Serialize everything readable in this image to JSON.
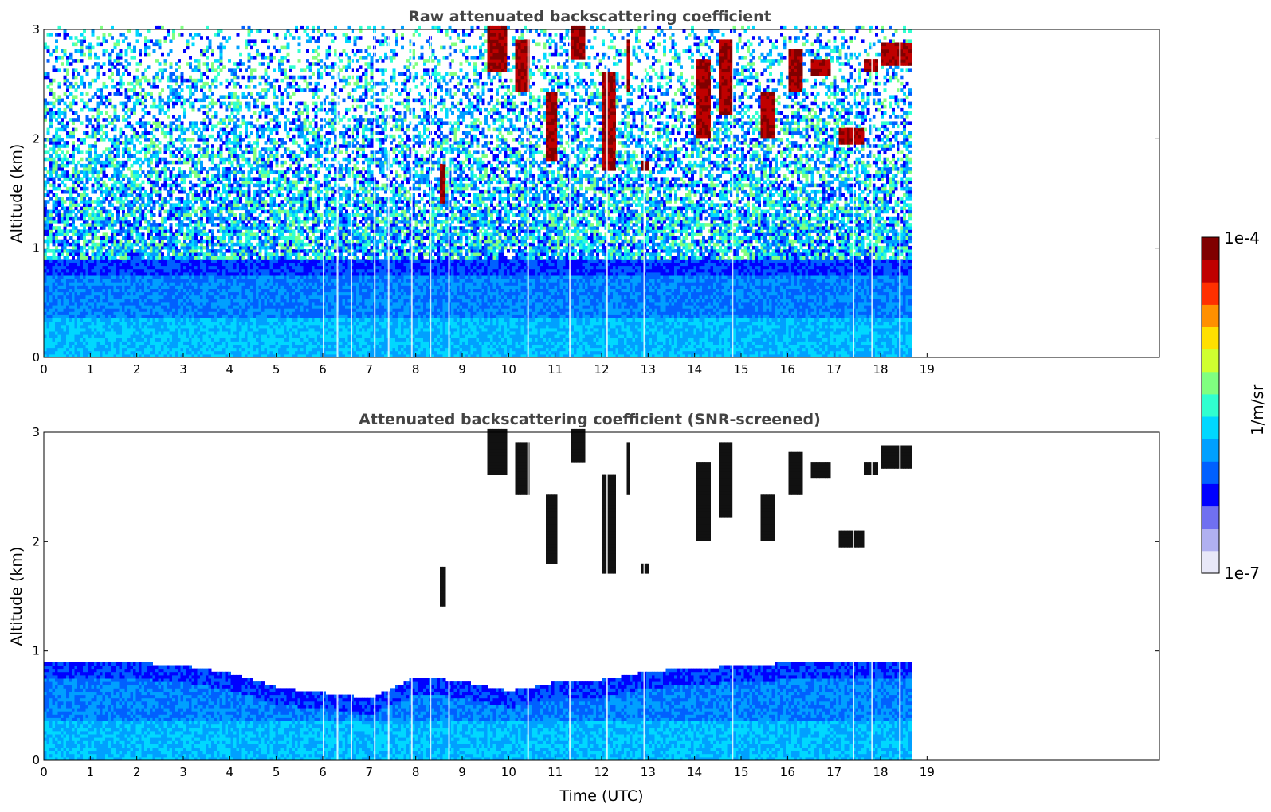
{
  "chart_data": [
    {
      "type": "heatmap",
      "title": "Raw attenuated backscattering coefficient",
      "xlabel": "",
      "ylabel": "Altitude (km)",
      "xlim": [
        0,
        24
      ],
      "ylim": [
        0,
        3
      ],
      "x_ticks": [
        0,
        1,
        2,
        3,
        4,
        5,
        6,
        7,
        8,
        9,
        10,
        11,
        12,
        13,
        14,
        15,
        16,
        17,
        18,
        19
      ],
      "y_ticks": [
        0,
        1,
        2,
        3
      ],
      "data_end_time": 18.6,
      "description_of_field": "aerosol boundary layer up to ~0.9 km; noisy signal aloft; clouds between 1.4 and 3 km after 8.5 UTC",
      "cloud_patches": [
        {
          "t0": 9.5,
          "t1": 9.9,
          "z0": 2.6,
          "z1": 3.0
        },
        {
          "t0": 10.1,
          "t1": 10.4,
          "z0": 2.4,
          "z1": 2.9
        },
        {
          "t0": 10.8,
          "t1": 11.0,
          "z0": 1.8,
          "z1": 2.4
        },
        {
          "t0": 11.3,
          "t1": 11.6,
          "z0": 2.7,
          "z1": 3.0
        },
        {
          "t0": 12.0,
          "t1": 12.3,
          "z0": 1.7,
          "z1": 2.6
        },
        {
          "t0": 12.5,
          "t1": 12.6,
          "z0": 2.4,
          "z1": 2.9
        },
        {
          "t0": 12.8,
          "t1": 13.0,
          "z0": 1.7,
          "z1": 1.8
        },
        {
          "t0": 14.0,
          "t1": 14.3,
          "z0": 2.0,
          "z1": 2.7
        },
        {
          "t0": 14.5,
          "t1": 14.8,
          "z0": 2.2,
          "z1": 2.9
        },
        {
          "t0": 15.4,
          "t1": 15.7,
          "z0": 2.0,
          "z1": 2.4
        },
        {
          "t0": 16.0,
          "t1": 16.3,
          "z0": 2.4,
          "z1": 2.8
        },
        {
          "t0": 16.5,
          "t1": 16.9,
          "z0": 2.55,
          "z1": 2.7
        },
        {
          "t0": 17.1,
          "t1": 17.6,
          "z0": 1.95,
          "z1": 2.1
        },
        {
          "t0": 17.6,
          "t1": 17.9,
          "z0": 2.6,
          "z1": 2.7
        },
        {
          "t0": 18.0,
          "t1": 18.6,
          "z0": 2.65,
          "z1": 2.85
        },
        {
          "t0": 8.5,
          "t1": 8.6,
          "z0": 1.4,
          "z1": 1.75
        }
      ]
    },
    {
      "type": "heatmap",
      "title": "Attenuated backscattering coefficient (SNR-screened)",
      "xlabel": "Time (UTC)",
      "ylabel": "Altitude (km)",
      "xlim": [
        0,
        24
      ],
      "ylim": [
        0,
        3
      ],
      "x_ticks": [
        0,
        1,
        2,
        3,
        4,
        5,
        6,
        7,
        8,
        9,
        10,
        11,
        12,
        13,
        14,
        15,
        16,
        17,
        18,
        19
      ],
      "y_ticks": [
        0,
        1,
        2,
        3
      ],
      "data_end_time": 18.6,
      "boundary_layer_top_km": [
        [
          0,
          0.9
        ],
        [
          1,
          0.9
        ],
        [
          2,
          0.88
        ],
        [
          3,
          0.85
        ],
        [
          4,
          0.78
        ],
        [
          5,
          0.65
        ],
        [
          6,
          0.6
        ],
        [
          7,
          0.55
        ],
        [
          8,
          0.75
        ],
        [
          9,
          0.7
        ],
        [
          10,
          0.62
        ],
        [
          11,
          0.7
        ],
        [
          12,
          0.72
        ],
        [
          13,
          0.8
        ],
        [
          14,
          0.83
        ],
        [
          15,
          0.85
        ],
        [
          16,
          0.88
        ],
        [
          17,
          0.9
        ],
        [
          18,
          0.88
        ],
        [
          18.6,
          0.9
        ]
      ]
    }
  ],
  "colorbar": {
    "label": "1/m/sr",
    "max_label": "1e-4",
    "min_label": "1e-7",
    "colormap": "jet",
    "colors": [
      "#e8e8f8",
      "#b0b0f0",
      "#7070f0",
      "#0000ff",
      "#0060ff",
      "#00a0ff",
      "#00d8ff",
      "#30ffd0",
      "#80ff80",
      "#d0ff30",
      "#ffe000",
      "#ff9000",
      "#ff3000",
      "#c00000",
      "#800000"
    ]
  }
}
